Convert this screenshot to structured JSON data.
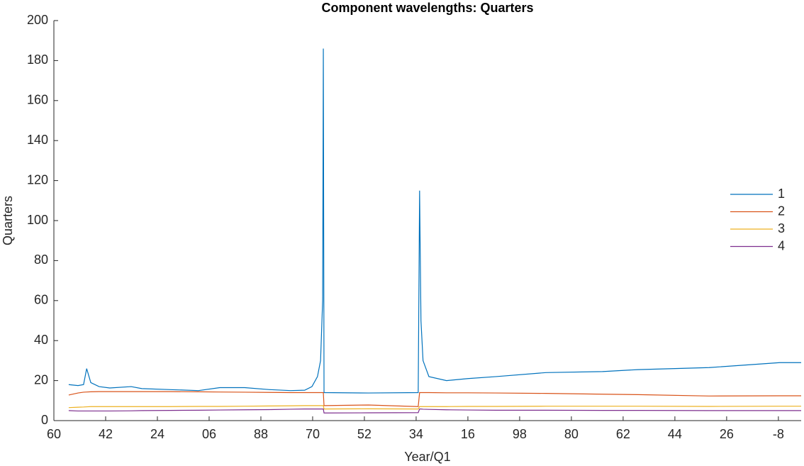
{
  "chart_data": {
    "type": "line",
    "title": "Component wavelengths: Quarters",
    "xlabel": "Year/Q1",
    "ylabel": "Quarters",
    "x": [
      4.3,
      7.0,
      8.6,
      9.5,
      10.7,
      13.1,
      16.2,
      22.4,
      25.5,
      33.7,
      41.9,
      48.1,
      55.3,
      62.5,
      68.6,
      72.7,
      74.8,
      76.4,
      77.3,
      77.9,
      78.1,
      78.3,
      91.2,
      105.6,
      106.0,
      106.4,
      107.0,
      108.7,
      113.8,
      120.0,
      128.2,
      142.6,
      159.0,
      169.3,
      189.9,
      210.4,
      216.6
    ],
    "series": [
      {
        "name": "1",
        "color": "#0072bd",
        "values": [
          18,
          17.5,
          18,
          26,
          19,
          17,
          16.3,
          17,
          16,
          15.5,
          15,
          16.5,
          16.5,
          15.5,
          15,
          15.2,
          17,
          22,
          30,
          60,
          186,
          14,
          13.8,
          14,
          115,
          50,
          30,
          22,
          20,
          21,
          22,
          24,
          24.5,
          25.5,
          26.5,
          29,
          29
        ]
      },
      {
        "name": "2",
        "color": "#d95319",
        "values": [
          12.8,
          13.8,
          14.2,
          14.3,
          14.4,
          14.5,
          14.5,
          14.5,
          14.5,
          14.5,
          14.4,
          14.3,
          14.2,
          14.1,
          14,
          14,
          14,
          14,
          14,
          14,
          14,
          7.5,
          7.8,
          7,
          14,
          14,
          14,
          14,
          13.9,
          13.9,
          13.8,
          13.6,
          13.2,
          13,
          12.3,
          12.4,
          12.4
        ]
      },
      {
        "name": "3",
        "color": "#edb120",
        "values": [
          6.5,
          6.7,
          6.8,
          6.9,
          7,
          7,
          7,
          7,
          7,
          7,
          7.1,
          7.1,
          7.2,
          7.3,
          7.4,
          7.5,
          7.5,
          7.5,
          7.5,
          7.5,
          7.5,
          5.8,
          5.9,
          5.8,
          7,
          7,
          7,
          7,
          7,
          7.1,
          7.1,
          7.2,
          7.2,
          7.2,
          7.1,
          7.2,
          7.2
        ]
      },
      {
        "name": "4",
        "color": "#7e2f8e",
        "values": [
          5,
          4.8,
          4.8,
          4.8,
          4.8,
          4.8,
          4.8,
          4.9,
          5,
          5.1,
          5.2,
          5.3,
          5.4,
          5.5,
          5.7,
          5.8,
          5.8,
          5.8,
          5.8,
          5.8,
          5.8,
          3.8,
          3.9,
          4,
          5.8,
          5.8,
          5.7,
          5.6,
          5.4,
          5.3,
          5.2,
          5.2,
          5.1,
          5.1,
          5,
          5,
          5
        ]
      }
    ],
    "xlim": [
      0,
      216.6
    ],
    "xticks": [
      {
        "value": 0,
        "label": "60"
      },
      {
        "value": 15,
        "label": "42"
      },
      {
        "value": 30,
        "label": "24"
      },
      {
        "value": 45,
        "label": "06"
      },
      {
        "value": 60,
        "label": "88"
      },
      {
        "value": 75,
        "label": "70"
      },
      {
        "value": 90,
        "label": "52"
      },
      {
        "value": 105,
        "label": "34"
      },
      {
        "value": 120,
        "label": "16"
      },
      {
        "value": 135,
        "label": "98"
      },
      {
        "value": 150,
        "label": "80"
      },
      {
        "value": 165,
        "label": "62"
      },
      {
        "value": 180,
        "label": "44"
      },
      {
        "value": 195,
        "label": "26"
      },
      {
        "value": 210,
        "label": "-8"
      }
    ],
    "ylim": [
      0,
      200
    ],
    "yticks": [
      0,
      20,
      40,
      60,
      80,
      100,
      120,
      140,
      160,
      180,
      200
    ],
    "legend": "east"
  }
}
